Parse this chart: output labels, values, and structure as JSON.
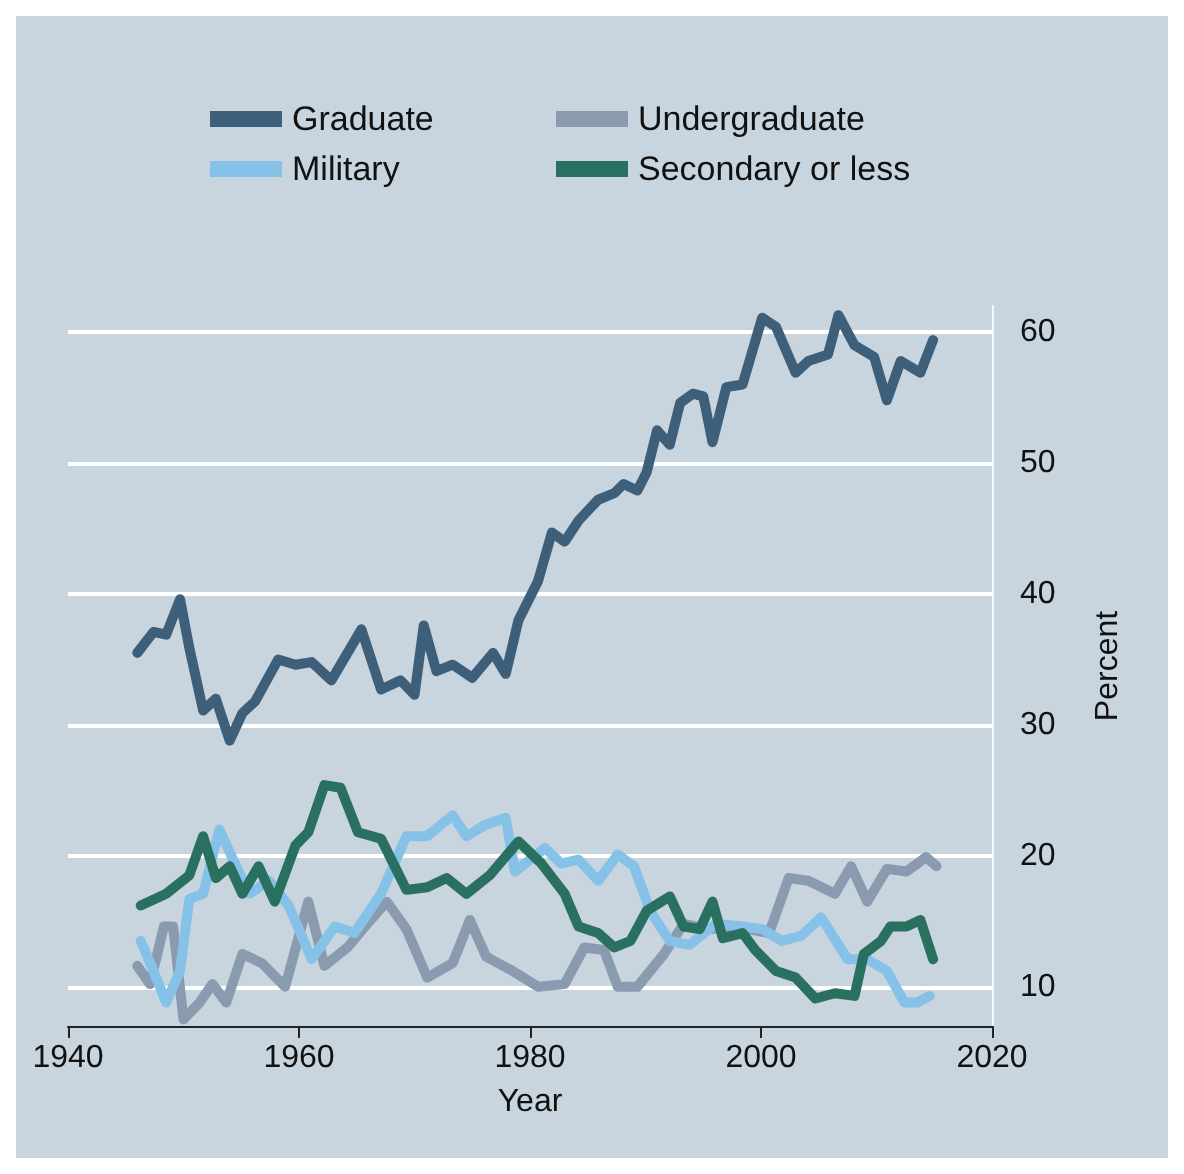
{
  "chart_data": {
    "type": "line",
    "xlabel": "Year",
    "ylabel": "Percent",
    "xlim": [
      1940,
      2020
    ],
    "xticks": [
      1940,
      1960,
      1980,
      2000,
      2020
    ],
    "ylim": [
      7,
      62
    ],
    "yticks": [
      10,
      20,
      30,
      40,
      50,
      60
    ],
    "grid": "y",
    "legend": "top",
    "series": [
      {
        "name": "Graduate",
        "color": "#3e5f7a",
        "x": [
          1946.0,
          1947.4,
          1948.5,
          1949.7,
          1950.5,
          1951.7,
          1952.8,
          1954.0,
          1955.1,
          1956.2,
          1958.2,
          1959.7,
          1961.1,
          1962.8,
          1965.4,
          1967.1,
          1968.8,
          1970.0,
          1970.8,
          1971.9,
          1973.3,
          1975.0,
          1976.8,
          1977.9,
          1979.0,
          1980.7,
          1981.9,
          1983.0,
          1984.2,
          1985.9,
          1987.3,
          1988.1,
          1989.3,
          1990.1,
          1991.0,
          1992.1,
          1993.0,
          1994.1,
          1995.0,
          1995.8,
          1997.0,
          1998.4,
          2000.1,
          2001.3,
          2003.0,
          2004.1,
          2005.8,
          2006.7,
          2008.1,
          2009.8,
          2010.9,
          2012.1,
          2013.8,
          2014.9
        ],
        "values": [
          35.5,
          37.1,
          36.9,
          39.6,
          35.9,
          31.1,
          32.0,
          28.8,
          30.9,
          31.8,
          35.0,
          34.6,
          34.8,
          33.4,
          37.3,
          32.7,
          33.4,
          32.3,
          37.6,
          34.1,
          34.6,
          33.6,
          35.5,
          33.9,
          38.0,
          41.0,
          44.7,
          44.0,
          45.6,
          47.2,
          47.7,
          48.4,
          47.9,
          49.3,
          52.5,
          51.4,
          54.6,
          55.3,
          55.1,
          51.6,
          55.8,
          56.0,
          61.1,
          60.4,
          56.9,
          57.8,
          58.3,
          61.3,
          59.0,
          58.1,
          54.8,
          57.8,
          56.9,
          59.4
        ]
      },
      {
        "name": "Undergraduate",
        "color": "#8a9bb0",
        "x": [
          1946.0,
          1947.1,
          1948.3,
          1949.1,
          1950.0,
          1951.4,
          1952.5,
          1953.7,
          1955.1,
          1956.8,
          1958.8,
          1960.8,
          1962.2,
          1964.2,
          1965.9,
          1967.6,
          1969.3,
          1971.1,
          1973.3,
          1974.8,
          1976.2,
          1978.5,
          1980.7,
          1983.0,
          1984.7,
          1986.4,
          1987.6,
          1989.3,
          1991.6,
          1993.3,
          1995.6,
          1997.8,
          2000.7,
          2002.4,
          2004.1,
          2006.4,
          2007.8,
          2009.2,
          2010.9,
          2012.6,
          2014.3,
          2015.2
        ],
        "values": [
          11.6,
          10.2,
          14.6,
          14.6,
          7.5,
          8.8,
          10.2,
          8.8,
          12.5,
          11.8,
          10.0,
          16.5,
          11.6,
          13.0,
          14.8,
          16.5,
          14.4,
          10.7,
          11.8,
          15.1,
          12.3,
          11.2,
          10.0,
          10.2,
          13.0,
          12.8,
          10.0,
          10.0,
          12.5,
          14.8,
          14.4,
          14.6,
          14.1,
          18.3,
          18.1,
          17.1,
          19.2,
          16.5,
          19.0,
          18.8,
          19.9,
          19.2
        ]
      },
      {
        "name": "Military",
        "color": "#86c1e8",
        "x": [
          1946.3,
          1947.4,
          1948.5,
          1949.7,
          1950.5,
          1951.7,
          1953.1,
          1954.2,
          1955.7,
          1957.4,
          1959.1,
          1961.1,
          1963.1,
          1964.8,
          1967.1,
          1969.3,
          1971.1,
          1973.3,
          1974.5,
          1976.2,
          1977.9,
          1978.7,
          1981.3,
          1982.7,
          1984.2,
          1985.9,
          1987.6,
          1989.0,
          1990.4,
          1992.1,
          1993.8,
          1996.1,
          1998.4,
          2000.1,
          2001.8,
          2003.5,
          2005.2,
          2007.5,
          2009.2,
          2010.9,
          2012.4,
          2013.5,
          2014.6
        ],
        "values": [
          13.5,
          11.2,
          8.8,
          11.2,
          16.7,
          17.1,
          22.0,
          19.9,
          17.1,
          18.1,
          16.2,
          12.1,
          14.6,
          14.1,
          17.1,
          21.5,
          21.5,
          23.1,
          21.5,
          22.4,
          22.9,
          18.8,
          20.6,
          19.4,
          19.7,
          18.1,
          20.1,
          19.2,
          15.8,
          13.5,
          13.2,
          14.8,
          14.6,
          14.4,
          13.5,
          13.9,
          15.3,
          12.1,
          12.1,
          11.2,
          8.8,
          8.8,
          9.3
        ]
      },
      {
        "name": "Secondary or less",
        "color": "#2a7060",
        "x": [
          1946.3,
          1948.5,
          1950.5,
          1951.7,
          1952.8,
          1954.0,
          1955.1,
          1956.5,
          1957.9,
          1959.7,
          1960.8,
          1962.2,
          1963.6,
          1965.1,
          1967.1,
          1969.3,
          1971.1,
          1972.8,
          1974.5,
          1976.5,
          1979.0,
          1981.0,
          1983.0,
          1984.2,
          1985.9,
          1987.3,
          1988.7,
          1990.1,
          1992.1,
          1993.3,
          1994.7,
          1995.8,
          1996.7,
          1998.4,
          1999.5,
          2001.3,
          2003.0,
          2004.7,
          2006.4,
          2008.1,
          2008.9,
          2010.4,
          2011.2,
          2012.6,
          2013.8,
          2014.9
        ],
        "values": [
          16.2,
          17.1,
          18.5,
          21.5,
          18.3,
          19.2,
          17.1,
          19.2,
          16.5,
          20.8,
          21.8,
          25.4,
          25.2,
          21.8,
          21.3,
          17.4,
          17.6,
          18.3,
          17.1,
          18.5,
          21.1,
          19.4,
          17.1,
          14.6,
          14.1,
          13.0,
          13.5,
          15.8,
          16.9,
          14.6,
          14.4,
          16.5,
          13.7,
          14.1,
          12.8,
          11.2,
          10.7,
          9.1,
          9.5,
          9.3,
          12.5,
          13.5,
          14.6,
          14.6,
          15.1,
          12.1
        ]
      }
    ]
  }
}
